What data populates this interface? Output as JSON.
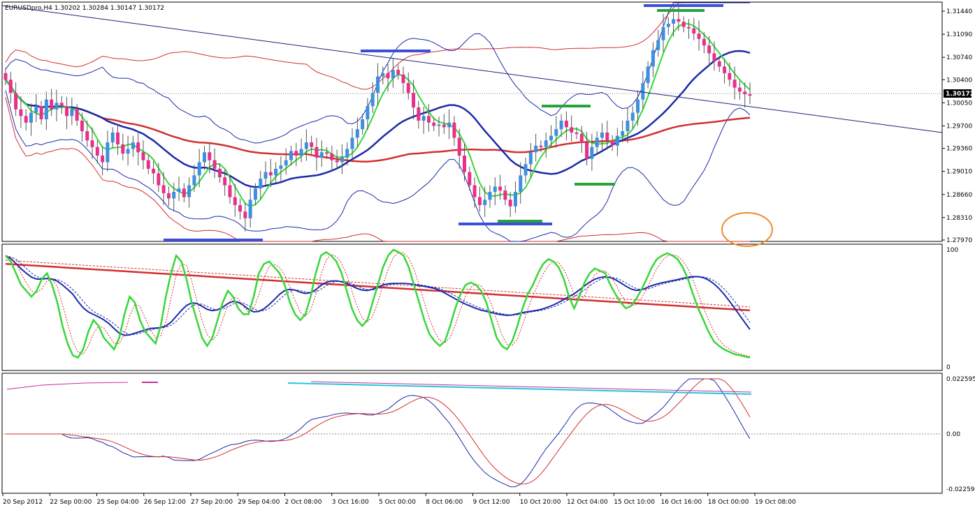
{
  "chart_data": [
    {
      "type": "candlestick",
      "header": "EURUSDpro,H4  1.30202 1.30284 1.30147 1.30172",
      "current_price": "1.30172",
      "y_ticks": [
        "1.31440",
        "1.31090",
        "1.30740",
        "1.30400",
        "1.30050",
        "1.29700",
        "1.29360",
        "1.29010",
        "1.28660",
        "1.28310",
        "1.27970"
      ],
      "ylim": [
        1.2797,
        1.3144
      ],
      "candle_closes": [
        1.304,
        1.302,
        1.2995,
        1.2985,
        1.2975,
        1.299,
        1.3,
        1.298,
        1.301,
        1.2995,
        1.3005,
        1.3,
        1.2985,
        1.2995,
        1.2978,
        1.2962,
        1.2948,
        1.2938,
        1.2925,
        1.2915,
        1.2945,
        1.296,
        1.2942,
        1.2928,
        1.2935,
        1.2945,
        1.293,
        1.2918,
        1.2905,
        1.2898,
        1.288,
        1.2868,
        1.286,
        1.287,
        1.2875,
        1.2862,
        1.288,
        1.2895,
        1.2915,
        1.293,
        1.2918,
        1.2905,
        1.2892,
        1.288,
        1.2862,
        1.285,
        1.284,
        1.283,
        1.2858,
        1.2875,
        1.289,
        1.29,
        1.2895,
        1.2905,
        1.291,
        1.2918,
        1.2932,
        1.2925,
        1.2935,
        1.2945,
        1.2938,
        1.2922,
        1.293,
        1.2928,
        1.2918,
        1.2915,
        1.2922,
        1.2935,
        1.2952,
        1.2965,
        1.298,
        1.3,
        1.302,
        1.3045,
        1.305,
        1.3042,
        1.3055,
        1.3048,
        1.3035,
        1.302,
        1.2998,
        1.2978,
        1.2985,
        1.2975,
        1.297,
        1.2972,
        1.2968,
        1.2975,
        1.2952,
        1.2925,
        1.29,
        1.288,
        1.2862,
        1.285,
        1.2858,
        1.287,
        1.2878,
        1.2872,
        1.2858,
        1.2848,
        1.287,
        1.2895,
        1.2912,
        1.293,
        1.294,
        1.2938,
        1.2948,
        1.2955,
        1.2965,
        1.2978,
        1.2968,
        1.296,
        1.2958,
        1.2945,
        1.292,
        1.2938,
        1.2952,
        1.296,
        1.2948,
        1.294,
        1.2955,
        1.2962,
        1.2978,
        1.299,
        1.301,
        1.3035,
        1.306,
        1.3085,
        1.31,
        1.312,
        1.3125,
        1.3132,
        1.3128,
        1.312,
        1.3118,
        1.311,
        1.3102,
        1.3092,
        1.308,
        1.3068,
        1.306,
        1.305,
        1.304,
        1.3028,
        1.3022,
        1.3018,
        1.3017
      ],
      "x_ticks": [
        "20 Sep 2012",
        "22 Sep 00:00",
        "25 Sep 04:00",
        "26 Sep 12:00",
        "27 Sep 20:00",
        "29 Sep 04:00",
        "2 Oct 08:00",
        "3 Oct 16:00",
        "5 Oct 00:00",
        "8 Oct 06:00",
        "9 Oct 12:00",
        "10 Oct 20:00",
        "12 Oct 04:00",
        "15 Oct 10:00",
        "16 Oct 16:00",
        "18 Oct 00:00",
        "19 Oct 08:00"
      ]
    },
    {
      "type": "line",
      "y_ticks": [
        "100",
        "0"
      ],
      "ylim": [
        0,
        100
      ],
      "stochastic_green": [
        95,
        90,
        80,
        70,
        65,
        60,
        65,
        75,
        80,
        70,
        55,
        35,
        20,
        10,
        8,
        15,
        30,
        40,
        35,
        25,
        20,
        15,
        25,
        45,
        60,
        55,
        40,
        30,
        25,
        20,
        35,
        60,
        80,
        95,
        90,
        75,
        55,
        40,
        25,
        18,
        25,
        40,
        55,
        65,
        60,
        50,
        45,
        45,
        60,
        80,
        88,
        90,
        85,
        80,
        70,
        55,
        45,
        40,
        45,
        60,
        80,
        95,
        98,
        95,
        90,
        80,
        65,
        50,
        40,
        35,
        40,
        55,
        70,
        85,
        95,
        100,
        98,
        95,
        85,
        70,
        55,
        40,
        28,
        22,
        18,
        22,
        35,
        50,
        62,
        70,
        72,
        70,
        65,
        55,
        40,
        25,
        18,
        15,
        22,
        35,
        50,
        62,
        70,
        80,
        88,
        92,
        90,
        85,
        75,
        60,
        50,
        60,
        72,
        80,
        84,
        82,
        80,
        70,
        62,
        55,
        50,
        52,
        58,
        66,
        75,
        85,
        92,
        95,
        97,
        95,
        92,
        85,
        75,
        62,
        50,
        40,
        30,
        22,
        18,
        15,
        13,
        11,
        10,
        9,
        8
      ]
    },
    {
      "type": "line",
      "y_ticks": [
        "0.022595",
        "0.00",
        "-0.022595"
      ],
      "ylim": [
        -0.022595,
        0.022595
      ]
    }
  ]
}
